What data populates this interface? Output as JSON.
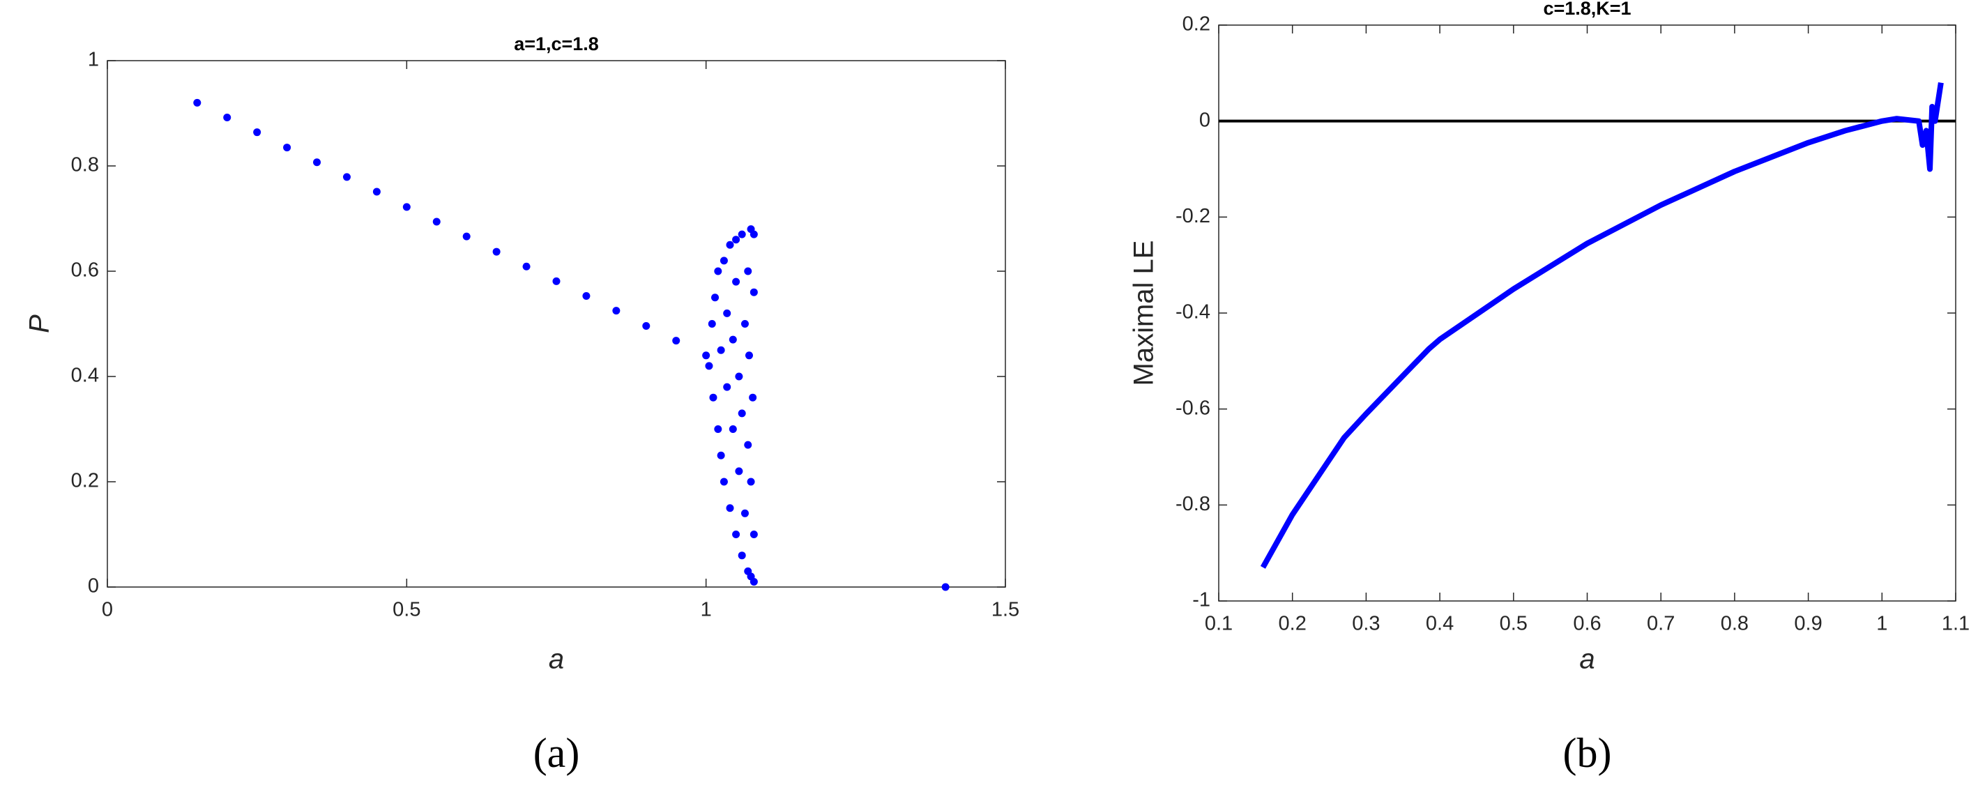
{
  "chart_data": [
    {
      "type": "scatter",
      "title": "a=1,c=1.8",
      "xlabel": "a",
      "ylabel": "P",
      "caption": "(a)",
      "color": "#0000ff",
      "x": [
        0.15,
        0.2,
        0.25,
        0.3,
        0.35,
        0.4,
        0.45,
        0.5,
        0.55,
        0.6,
        0.65,
        0.7,
        0.75,
        0.8,
        0.85,
        0.9,
        0.95,
        1.0,
        1.005,
        1.01,
        1.012,
        1.015,
        1.02,
        1.02,
        1.025,
        1.025,
        1.03,
        1.03,
        1.035,
        1.035,
        1.04,
        1.04,
        1.045,
        1.045,
        1.05,
        1.05,
        1.05,
        1.055,
        1.055,
        1.06,
        1.06,
        1.06,
        1.065,
        1.065,
        1.07,
        1.07,
        1.07,
        1.072,
        1.075,
        1.075,
        1.075,
        1.078,
        1.08,
        1.08,
        1.08,
        1.08,
        1.4
      ],
      "y": [
        0.92,
        0.892,
        0.864,
        0.835,
        0.807,
        0.779,
        0.751,
        0.722,
        0.694,
        0.666,
        0.637,
        0.609,
        0.581,
        0.553,
        0.525,
        0.496,
        0.468,
        0.44,
        0.42,
        0.5,
        0.36,
        0.55,
        0.3,
        0.6,
        0.45,
        0.25,
        0.62,
        0.2,
        0.38,
        0.52,
        0.15,
        0.65,
        0.3,
        0.47,
        0.1,
        0.58,
        0.66,
        0.22,
        0.4,
        0.06,
        0.67,
        0.33,
        0.5,
        0.14,
        0.03,
        0.6,
        0.27,
        0.44,
        0.02,
        0.68,
        0.2,
        0.36,
        0.01,
        0.56,
        0.1,
        0.67,
        0
      ],
      "xlim": [
        0,
        1.5
      ],
      "xticks": [
        0,
        0.5,
        1,
        1.5
      ],
      "ylim": [
        0,
        1
      ],
      "yticks": [
        0,
        0.2,
        0.4,
        0.6,
        0.8,
        1
      ]
    },
    {
      "type": "line",
      "title": "c=1.8,K=1",
      "xlabel": "a",
      "ylabel": "Maximal LE",
      "caption": "(b)",
      "color": "#0000ff",
      "x": [
        0.16,
        0.2,
        0.27,
        0.3,
        0.385,
        0.4,
        0.5,
        0.6,
        0.7,
        0.8,
        0.9,
        0.95,
        1.0,
        1.02,
        1.05,
        1.055,
        1.06,
        1.065,
        1.068,
        1.072,
        1.08
      ],
      "y": [
        -0.93,
        -0.82,
        -0.66,
        -0.61,
        -0.475,
        -0.455,
        -0.35,
        -0.255,
        -0.175,
        -0.105,
        -0.045,
        -0.02,
        0,
        0.005,
        0,
        -0.05,
        -0.02,
        -0.1,
        0.03,
        0,
        0.08
      ],
      "reference_line": {
        "value": 0,
        "color": "#000000"
      },
      "xlim": [
        0.1,
        1.1
      ],
      "xticks": [
        0.1,
        0.2,
        0.3,
        0.4,
        0.5,
        0.6,
        0.7,
        0.8,
        0.9,
        1,
        1.1
      ],
      "ylim": [
        -1,
        0.2
      ],
      "yticks": [
        -1,
        -0.8,
        -0.6,
        -0.4,
        -0.2,
        0,
        0.2
      ]
    }
  ]
}
